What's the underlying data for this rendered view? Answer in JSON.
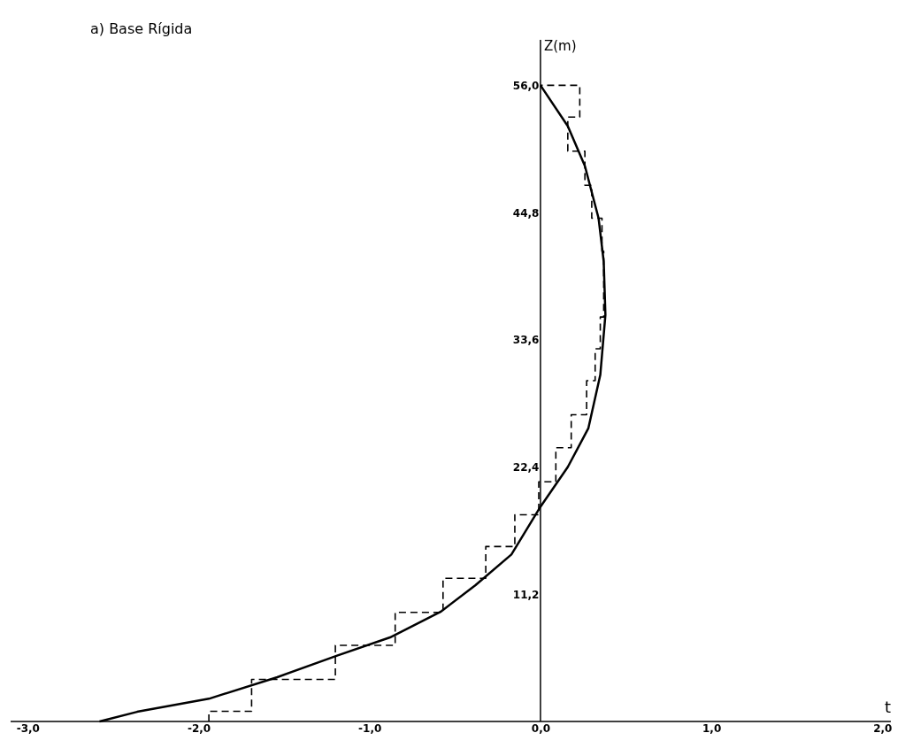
{
  "chart_data": {
    "type": "line",
    "xlabel": "t",
    "ylabel": "Z(m)",
    "annotations": [
      "a) Base Rígida"
    ],
    "xlim": [
      -3.1,
      2.05
    ],
    "ylim": [
      0,
      60
    ],
    "xticks": [
      {
        "value": -3.0,
        "label": "-3,0"
      },
      {
        "value": -2.0,
        "label": "-2,0"
      },
      {
        "value": -1.0,
        "label": "-1,0"
      },
      {
        "value": 0.0,
        "label": "0,0"
      },
      {
        "value": 1.0,
        "label": "1,0"
      },
      {
        "value": 2.0,
        "label": "2,0"
      }
    ],
    "yticks": [
      {
        "value": 11.2,
        "label": "11,2"
      },
      {
        "value": 22.4,
        "label": "22,4"
      },
      {
        "value": 33.6,
        "label": "33,6"
      },
      {
        "value": 44.8,
        "label": "44,8"
      },
      {
        "value": 56.0,
        "label": "56,0"
      }
    ],
    "grid": false,
    "marker": "none",
    "series": [
      {
        "color": "#000000",
        "line_style": "solid",
        "x": [
          -2.58,
          -2.36,
          -1.94,
          -1.54,
          -1.19,
          -0.88,
          -0.58,
          -0.38,
          -0.17,
          0.0,
          0.16,
          0.28,
          0.35,
          0.38,
          0.37,
          0.34,
          0.26,
          0.16,
          0.0
        ],
        "values": [
          0,
          0.85,
          2.0,
          3.9,
          5.8,
          7.4,
          9.7,
          12.0,
          14.7,
          18.9,
          22.4,
          25.8,
          30.5,
          35.8,
          40.5,
          44.3,
          48.9,
          52.4,
          56.0
        ]
      },
      {
        "color": "#000000",
        "line_style": "dashed",
        "x": [
          -1.94,
          -1.94,
          -1.69,
          -1.69,
          -1.2,
          -1.2,
          -0.85,
          -0.85,
          -0.57,
          -0.57,
          -0.32,
          -0.32,
          -0.15,
          -0.15,
          -0.01,
          -0.01,
          0.09,
          0.09,
          0.18,
          0.18,
          0.27,
          0.27,
          0.32,
          0.32,
          0.35,
          0.35,
          0.37,
          0.37,
          0.37,
          0.37,
          0.36,
          0.36,
          0.3,
          0.3,
          0.26,
          0.26,
          0.16,
          0.16,
          0.23,
          0.23,
          0.0
        ],
        "values": [
          0,
          0.9,
          0.9,
          3.7,
          3.7,
          6.7,
          6.7,
          9.6,
          9.6,
          12.6,
          12.6,
          15.4,
          15.4,
          18.2,
          18.2,
          21.1,
          21.1,
          24.1,
          24.1,
          27.0,
          27.0,
          30.0,
          30.0,
          32.8,
          32.8,
          35.6,
          35.6,
          38.5,
          38.5,
          41.4,
          41.4,
          44.3,
          44.3,
          47.2,
          47.2,
          50.2,
          50.2,
          53.2,
          53.2,
          56.0,
          56.0
        ]
      }
    ]
  }
}
